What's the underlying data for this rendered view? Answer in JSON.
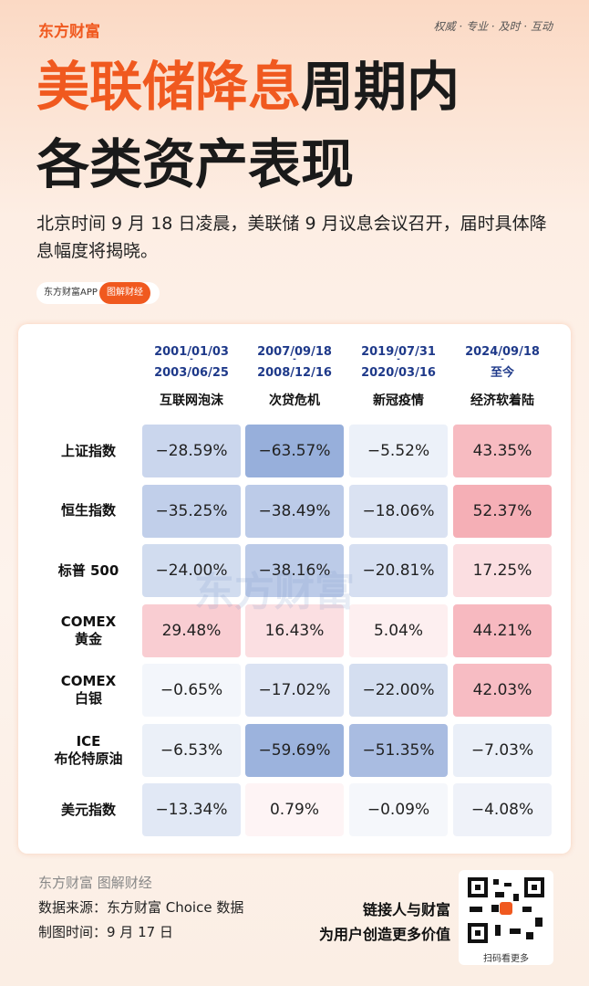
{
  "header": {
    "logo": "东方财富",
    "slogan": "权威 · 专业 · 及时 · 互动",
    "title_highlight": "美联储降息",
    "title_rest": "周期内",
    "title_line2": "各类资产表现",
    "subtitle": "北京时间 9 月 18 日凌晨，美联储 9 月议息会议召开，届时具体降息幅度将揭晓。",
    "app_tag": "东方财富APP",
    "section_tag": "图解财经"
  },
  "table": {
    "columns": [
      {
        "start": "2001/01/03",
        "end": "2003/06/25",
        "name": "互联网泡沫"
      },
      {
        "start": "2007/09/18",
        "end": "2008/12/16",
        "name": "次贷危机"
      },
      {
        "start": "2019/07/31",
        "end": "2020/03/16",
        "name": "新冠疫情"
      },
      {
        "start": "2024/09/18",
        "end": "至今",
        "name": "经济软着陆"
      }
    ],
    "rows": [
      {
        "label": [
          "上证指数"
        ],
        "cells": [
          "−28.59%",
          "−63.57%",
          "−5.52%",
          "43.35%"
        ]
      },
      {
        "label": [
          "恒生指数"
        ],
        "cells": [
          "−35.25%",
          "−38.49%",
          "−18.06%",
          "52.37%"
        ]
      },
      {
        "label": [
          "标普 500"
        ],
        "cells": [
          "−24.00%",
          "−38.16%",
          "−20.81%",
          "17.25%"
        ]
      },
      {
        "label": [
          "COMEX",
          "黄金"
        ],
        "cells": [
          "29.48%",
          "16.43%",
          "5.04%",
          "44.21%"
        ]
      },
      {
        "label": [
          "COMEX",
          "白银"
        ],
        "cells": [
          "−0.65%",
          "−17.02%",
          "−22.00%",
          "42.03%"
        ]
      },
      {
        "label": [
          "ICE",
          "布伦特原油"
        ],
        "cells": [
          "−6.53%",
          "−59.69%",
          "−51.35%",
          "−7.03%"
        ]
      },
      {
        "label": [
          "美元指数"
        ],
        "cells": [
          "−13.34%",
          "0.79%",
          "−0.09%",
          "−4.08%"
        ]
      }
    ]
  },
  "watermark": "东方财富",
  "footer": {
    "brand": "东方财富 图解财经",
    "source": "数据来源：东方财富 Choice 数据",
    "date": "制图时间：9 月 17 日",
    "slogan_line1": "链接人与财富",
    "slogan_line2": "为用户创造更多价值",
    "qr_caption": "扫码看更多"
  }
}
